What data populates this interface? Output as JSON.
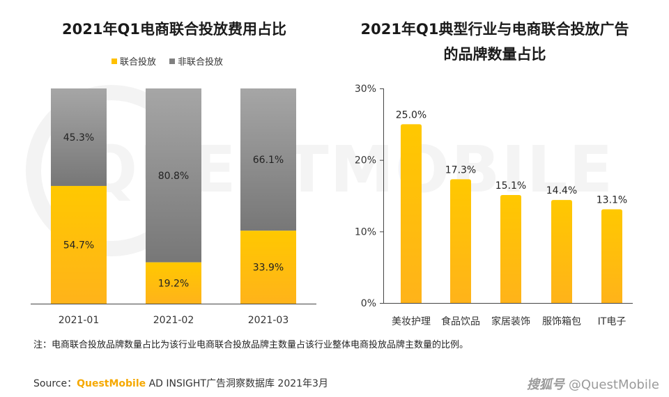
{
  "left_title": "2021年Q1电商联合投放费用占比",
  "right_title_line1": "2021年Q1典型行业与电商联合投放广告",
  "right_title_line2": "的品牌数量占比",
  "note": "注：电商联合投放品牌数量占比为该行业电商联合投放品牌主数量占该行业整体电商投放品牌主数量的比例。",
  "source_prefix": "Source：",
  "source_brand": "QuestMobile",
  "source_rest": " AD INSIGHT广告洞察数据库 2021年3月",
  "watermark_logo": "搜狐号",
  "watermark_text": "@QuestMobile",
  "background_watermark": "QUESTMOBILE",
  "colors": {
    "yellow": "#ffc000",
    "yellow_bottom": "#ffb31a",
    "gray_top": "#a6a6a6",
    "gray_bottom": "#7a7a7a",
    "axis": "#444444"
  },
  "chart_data": [
    {
      "type": "bar",
      "stacked": true,
      "percent": true,
      "title": "2021年Q1电商联合投放费用占比",
      "categories": [
        "2021-01",
        "2021-02",
        "2021-03"
      ],
      "series": [
        {
          "name": "联合投放",
          "values": [
            54.7,
            19.2,
            33.9
          ],
          "labels": [
            "54.7%",
            "19.2%",
            "33.9%"
          ]
        },
        {
          "name": "非联合投放",
          "values": [
            45.3,
            80.8,
            66.1
          ],
          "labels": [
            "45.3%",
            "80.8%",
            "66.1%"
          ]
        }
      ],
      "legend": "top-center",
      "ylim": [
        0,
        100
      ]
    },
    {
      "type": "bar",
      "title": "2021年Q1典型行业与电商联合投放广告的品牌数量占比",
      "categories": [
        "美妆护理",
        "食品饮品",
        "家居装饰",
        "服饰箱包",
        "IT电子"
      ],
      "values": [
        25.0,
        17.3,
        15.1,
        14.4,
        13.1
      ],
      "labels": [
        "25.0%",
        "17.3%",
        "15.1%",
        "14.4%",
        "13.1%"
      ],
      "yticks": [
        "0%",
        "10%",
        "20%",
        "30%"
      ],
      "ylim": [
        0,
        30
      ],
      "grid": false
    }
  ]
}
